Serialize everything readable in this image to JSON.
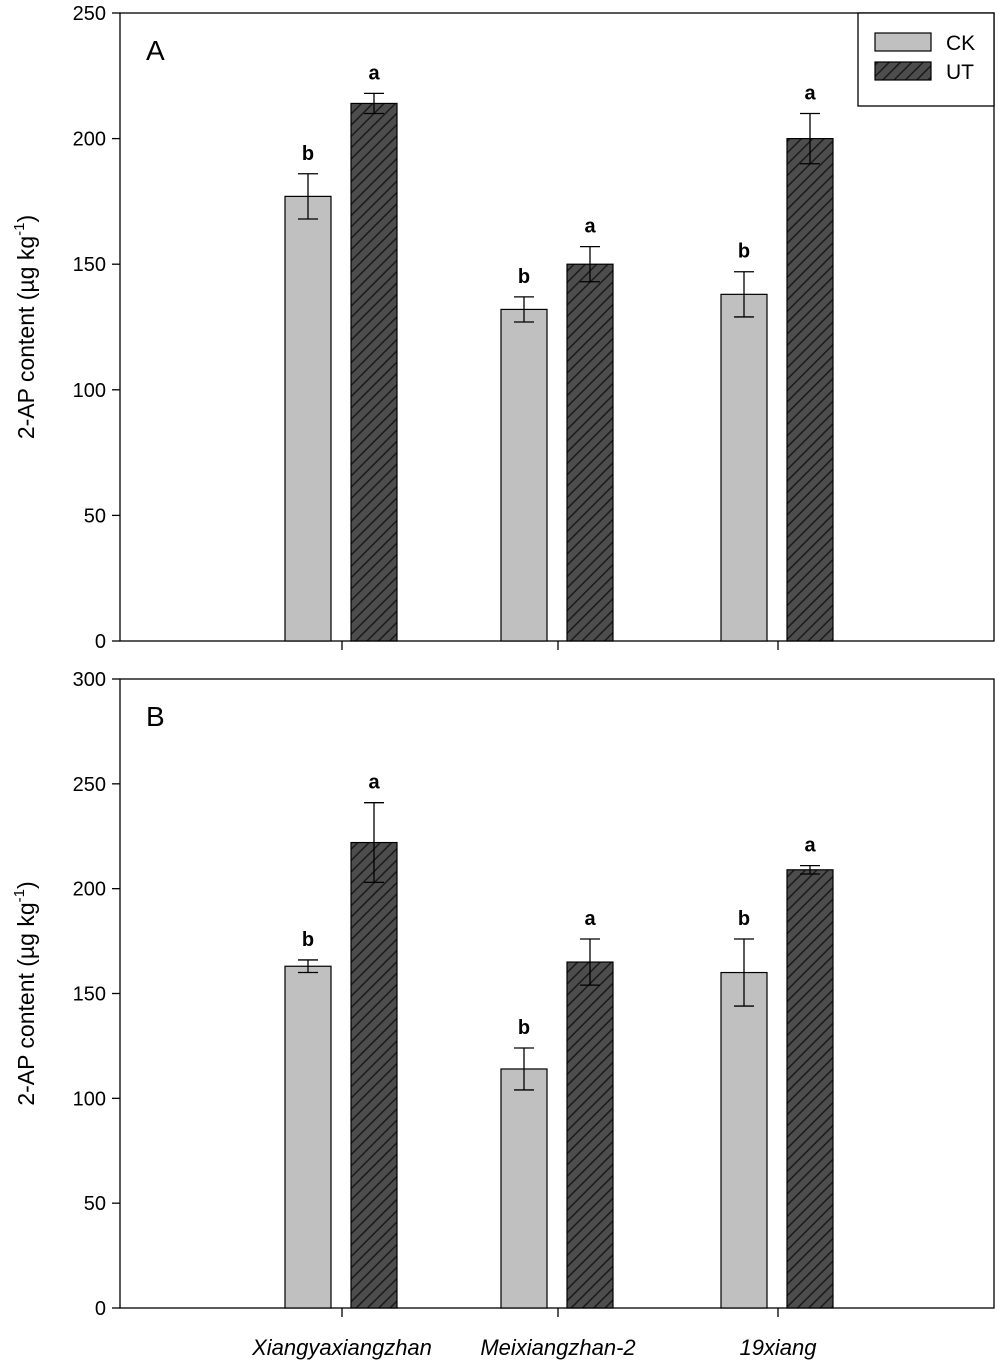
{
  "chart_data": [
    {
      "type": "bar",
      "panel": "A",
      "ylabel": "2-AP content (µg kg",
      "ylabel_sup": "-1",
      "ylabel_close": ")",
      "ylim": [
        0,
        250
      ],
      "yticks": [
        0,
        50,
        100,
        150,
        200,
        250
      ],
      "categories": [
        "Xiangyaxiangzhan",
        "Meixiangzhan-2",
        "19xiang"
      ],
      "series": [
        {
          "name": "CK",
          "values": [
            177,
            132,
            138
          ],
          "errors": [
            9,
            5,
            9
          ],
          "letters": [
            "b",
            "b",
            "b"
          ],
          "color": "#c0c0c0",
          "pattern": "solid"
        },
        {
          "name": "UT",
          "values": [
            214,
            150,
            200
          ],
          "errors": [
            4,
            7,
            10
          ],
          "letters": [
            "a",
            "a",
            "a"
          ],
          "color": "#4d4d4d",
          "pattern": "hatch"
        }
      ],
      "legend": {
        "position": "top-right",
        "entries": [
          "CK",
          "UT"
        ]
      }
    },
    {
      "type": "bar",
      "panel": "B",
      "ylabel": "2-AP content (µg kg",
      "ylabel_sup": "-1",
      "ylabel_close": ")",
      "ylim": [
        0,
        300
      ],
      "yticks": [
        0,
        50,
        100,
        150,
        200,
        250,
        300
      ],
      "categories": [
        "Xiangyaxiangzhan",
        "Meixiangzhan-2",
        "19xiang"
      ],
      "series": [
        {
          "name": "CK",
          "values": [
            163,
            114,
            160
          ],
          "errors": [
            3,
            10,
            16
          ],
          "letters": [
            "b",
            "b",
            "b"
          ],
          "color": "#c0c0c0",
          "pattern": "solid"
        },
        {
          "name": "UT",
          "values": [
            222,
            165,
            209
          ],
          "errors": [
            19,
            11,
            2
          ],
          "letters": [
            "a",
            "a",
            "a"
          ],
          "color": "#4d4d4d",
          "pattern": "hatch"
        }
      ]
    }
  ]
}
